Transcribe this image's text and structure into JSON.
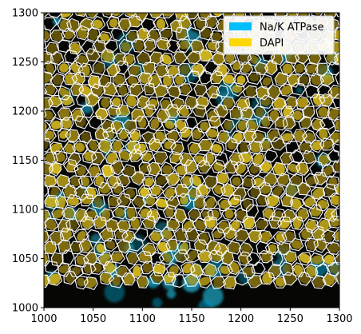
{
  "figure": {
    "kind": "microscopy overlay with cell segmentation boundaries",
    "background_color": "#000000",
    "boundary_color": "#ffffff"
  },
  "legend": {
    "placement": "top-right",
    "entries": [
      {
        "label": "Na/K ATPase",
        "color": "#00bfff"
      },
      {
        "label": "DAPI",
        "color": "#ffd700"
      }
    ]
  },
  "axes": {
    "xlim": [
      1000,
      1300
    ],
    "ylim": [
      1000,
      1300
    ],
    "x_ticks": [
      "1000",
      "1050",
      "1100",
      "1150",
      "1200",
      "1250",
      "1300"
    ],
    "y_ticks": [
      "1000",
      "1050",
      "1100",
      "1150",
      "1200",
      "1250",
      "1300"
    ]
  }
}
